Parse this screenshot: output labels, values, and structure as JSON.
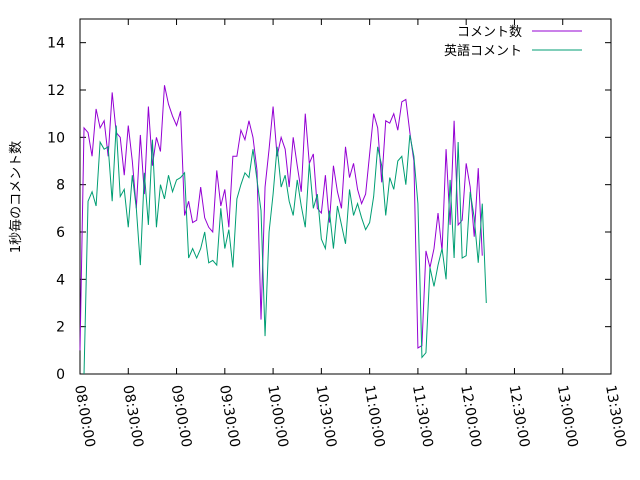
{
  "chart_data": {
    "type": "line",
    "title": "",
    "xlabel": "",
    "ylabel": "1秒毎のコメント数",
    "ylim": [
      0,
      15
    ],
    "yticks": [
      0,
      2,
      4,
      6,
      8,
      10,
      12,
      14
    ],
    "xlim": [
      "08:00:00",
      "13:30:00"
    ],
    "xticks": [
      "08:00:00",
      "08:30:00",
      "09:00:00",
      "09:30:00",
      "10:00:00",
      "10:30:00",
      "11:00:00",
      "11:30:00",
      "12:00:00",
      "12:30:00",
      "13:00:00",
      "13:30:00"
    ],
    "grid": false,
    "legend_position": "top-right",
    "x_interval_minutes": 2.5,
    "x_start": "08:00:00",
    "series": [
      {
        "name": "コメント数",
        "color": "#9400d3",
        "values": [
          1.0,
          10.4,
          10.2,
          9.2,
          11.2,
          10.4,
          10.7,
          9.2,
          11.9,
          10.2,
          10.0,
          8.4,
          10.5,
          9.0,
          7.0,
          10.1,
          7.6,
          11.3,
          8.8,
          10.0,
          9.4,
          12.2,
          11.4,
          10.9,
          10.5,
          11.1,
          6.7,
          7.3,
          6.4,
          6.5,
          7.9,
          6.6,
          6.2,
          6.0,
          8.6,
          7.1,
          7.8,
          6.2,
          9.2,
          9.2,
          10.3,
          9.9,
          10.7,
          10.0,
          8.6,
          2.3,
          7.9,
          9.5,
          11.3,
          9.2,
          10.0,
          9.5,
          7.9,
          10.0,
          8.8,
          7.7,
          11.0,
          8.9,
          9.3,
          7.0,
          6.8,
          8.4,
          6.4,
          8.8,
          7.7,
          7.0,
          9.6,
          8.3,
          8.9,
          7.8,
          7.2,
          7.6,
          9.3,
          11.0,
          10.4,
          8.1,
          10.7,
          10.6,
          11.0,
          10.3,
          11.5,
          11.6,
          10.2,
          9.0,
          1.1,
          1.2,
          5.2,
          4.5,
          5.3,
          6.8,
          5.2,
          9.5,
          6.3,
          10.7,
          6.3,
          6.5,
          8.9,
          7.9,
          5.8,
          8.7,
          5.0
        ],
        "x_start_index": 0
      },
      {
        "name": "英語コメント",
        "color": "#009e73",
        "values": [
          0.0,
          7.3,
          7.7,
          7.1,
          9.8,
          9.5,
          9.6,
          7.3,
          10.5,
          7.5,
          7.8,
          6.2,
          8.4,
          7.0,
          4.6,
          8.5,
          6.3,
          9.9,
          6.2,
          8.0,
          7.4,
          8.4,
          7.7,
          8.2,
          8.3,
          8.5,
          4.9,
          5.3,
          4.9,
          5.3,
          6.0,
          4.7,
          4.8,
          4.6,
          7.0,
          5.3,
          6.1,
          4.5,
          7.4,
          8.0,
          8.5,
          8.3,
          9.5,
          8.2,
          6.9,
          1.6,
          6.0,
          7.6,
          9.6,
          7.9,
          8.4,
          7.3,
          6.7,
          8.2,
          7.1,
          6.2,
          8.9,
          7.0,
          7.6,
          5.7,
          5.3,
          6.9,
          5.3,
          7.1,
          6.3,
          5.5,
          7.8,
          6.7,
          7.2,
          6.6,
          6.1,
          6.4,
          7.5,
          9.6,
          8.8,
          6.7,
          8.3,
          7.8,
          9.0,
          9.2,
          8.0,
          10.1,
          9.2,
          7.2,
          0.7,
          0.9,
          4.5,
          3.7,
          4.6,
          5.3,
          4.0,
          8.2,
          4.9,
          9.8,
          4.9,
          5.0,
          7.7,
          6.6,
          4.7,
          7.2,
          3.0
        ],
        "x_start_index": 1
      }
    ]
  }
}
